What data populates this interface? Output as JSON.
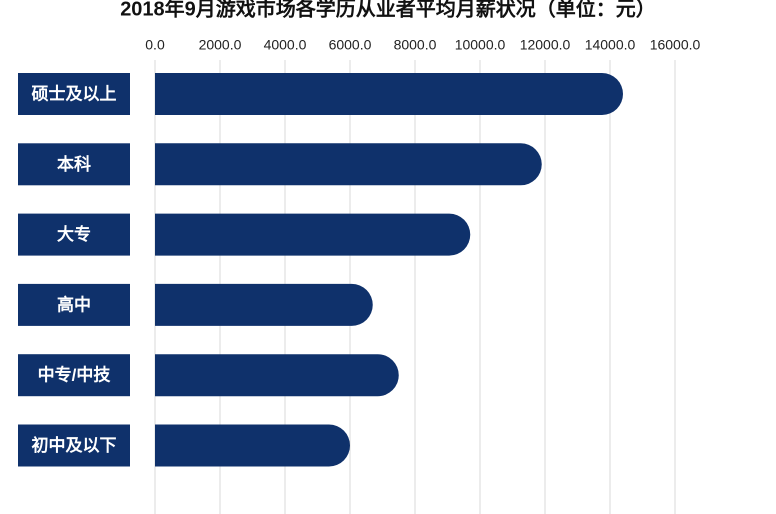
{
  "chart_data": {
    "type": "barh",
    "title": "2018年9月游戏市场各学历从业者平均月薪状况（单位：元）",
    "categories": [
      "硕士及以上",
      "本科",
      "大专",
      "高中",
      "中专/中技",
      "初中及以下"
    ],
    "values": [
      14400,
      11900,
      9700,
      6700,
      7500,
      6000
    ],
    "color": "#0f316b",
    "xlim": [
      0,
      16000
    ],
    "xticks": [
      {
        "value": 0,
        "label": "0.0"
      },
      {
        "value": 2000,
        "label": "2000.0"
      },
      {
        "value": 4000,
        "label": "4000.0"
      },
      {
        "value": 6000,
        "label": "6000.0"
      },
      {
        "value": 8000,
        "label": "8000.0"
      },
      {
        "value": 10000,
        "label": "10000.0"
      },
      {
        "value": 12000,
        "label": "12000.0"
      },
      {
        "value": 14000,
        "label": "14000.0"
      },
      {
        "value": 16000,
        "label": "16000.0"
      }
    ],
    "grid": true
  }
}
